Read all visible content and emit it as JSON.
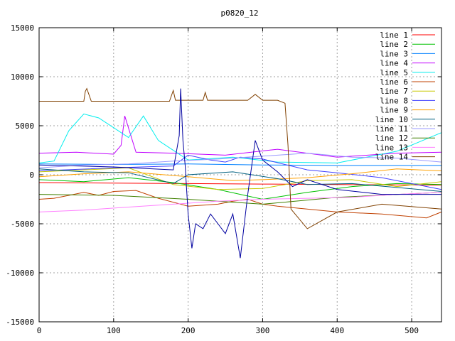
{
  "chart_data": {
    "type": "line",
    "title": "p0820_12",
    "xlabel": "",
    "ylabel": "",
    "xlim": [
      0,
      540
    ],
    "ylim": [
      -15000,
      15000
    ],
    "grid": true,
    "legend_position": "top-right",
    "x_ticks": [
      0,
      100,
      200,
      300,
      400,
      500
    ],
    "x_tick_labels": [
      "0",
      "100",
      "200",
      "300",
      "400",
      "500"
    ],
    "y_ticks": [
      -15000,
      -10000,
      -5000,
      0,
      5000,
      10000,
      15000
    ],
    "y_tick_labels": [
      "-15000",
      "-10000",
      "-5000",
      "0",
      "5000",
      "10000",
      "15000"
    ],
    "series": [
      {
        "name": "line 1",
        "color": "#ff0000",
        "x": [
          0,
          100,
          200,
          300,
          400,
          540
        ],
        "y": [
          -800,
          -850,
          -900,
          -950,
          -1000,
          -1050
        ]
      },
      {
        "name": "line 2",
        "color": "#00c000",
        "x": [
          0,
          60,
          120,
          180,
          240,
          300,
          360,
          420,
          480,
          540
        ],
        "y": [
          -500,
          -700,
          -300,
          -800,
          -1500,
          -2500,
          -1800,
          -1200,
          -900,
          -1000
        ]
      },
      {
        "name": "line 3",
        "color": "#0080ff",
        "x": [
          0,
          100,
          200,
          300,
          400,
          540
        ],
        "y": [
          1100,
          1050,
          1100,
          1000,
          950,
          950
        ]
      },
      {
        "name": "line 4",
        "color": "#c000ff",
        "x": [
          0,
          50,
          100,
          110,
          115,
          130,
          180,
          250,
          320,
          400,
          480,
          540
        ],
        "y": [
          2200,
          2300,
          2100,
          3000,
          6000,
          2300,
          2200,
          2000,
          2600,
          1800,
          2200,
          2300
        ]
      },
      {
        "name": "line 5",
        "color": "#00eeee",
        "x": [
          0,
          20,
          40,
          60,
          80,
          120,
          140,
          160,
          200,
          260,
          320,
          400,
          480,
          540
        ],
        "y": [
          1200,
          1400,
          4500,
          6200,
          5800,
          3800,
          6000,
          3500,
          1500,
          1800,
          1300,
          1200,
          2400,
          4300
        ]
      },
      {
        "name": "line 6",
        "color": "#c04000",
        "x": [
          0,
          20,
          40,
          60,
          80,
          100,
          130,
          160,
          200,
          240,
          260,
          280,
          300,
          320,
          400,
          460,
          520,
          540
        ],
        "y": [
          -2500,
          -2400,
          -2100,
          -1800,
          -2100,
          -1700,
          -1600,
          -2400,
          -3200,
          -3000,
          -2700,
          -2500,
          -3000,
          -3200,
          -3800,
          -4000,
          -4400,
          -3800
        ]
      },
      {
        "name": "line 7",
        "color": "#c8c800",
        "x": [
          0,
          60,
          120,
          180,
          240,
          300,
          360,
          420,
          480,
          540
        ],
        "y": [
          300,
          500,
          700,
          -1000,
          -1500,
          -1400,
          -600,
          -500,
          -1200,
          -700
        ]
      },
      {
        "name": "line 8",
        "color": "#4040ff",
        "x": [
          0,
          100,
          180,
          200,
          230,
          250,
          270,
          300,
          360,
          400,
          460,
          540
        ],
        "y": [
          400,
          700,
          900,
          2000,
          1500,
          1300,
          1800,
          1600,
          500,
          200,
          -300,
          -1500
        ]
      },
      {
        "name": "line 9",
        "color": "#ffa000",
        "x": [
          0,
          60,
          120,
          200,
          260,
          300,
          360,
          420,
          480,
          540
        ],
        "y": [
          -200,
          100,
          300,
          -200,
          -600,
          -500,
          -300,
          100,
          600,
          400
        ]
      },
      {
        "name": "line 10",
        "color": "#006080",
        "x": [
          0,
          60,
          120,
          180,
          200,
          260,
          320,
          360,
          420,
          480,
          540
        ],
        "y": [
          600,
          300,
          200,
          -900,
          0,
          300,
          -400,
          -1000,
          -900,
          -1300,
          -1700
        ]
      },
      {
        "name": "line 11",
        "color": "#9999ff",
        "x": [
          0,
          60,
          120,
          180,
          240,
          300,
          360,
          420,
          480,
          540
        ],
        "y": [
          700,
          1000,
          1100,
          1400,
          1600,
          1900,
          2200,
          1800,
          1700,
          1300
        ]
      },
      {
        "name": "line 12",
        "color": "#408000",
        "x": [
          0,
          100,
          200,
          300,
          400,
          540
        ],
        "y": [
          -2000,
          -2100,
          -2500,
          -3000,
          -2300,
          -1800
        ]
      },
      {
        "name": "line 13",
        "color": "#ff80ff",
        "x": [
          0,
          60,
          120,
          180,
          240,
          300,
          360,
          420,
          480,
          540
        ],
        "y": [
          -3800,
          -3600,
          -3300,
          -3000,
          -2700,
          -2500,
          -2400,
          -2300,
          -2000,
          -1800
        ]
      },
      {
        "name": "line 14",
        "color": "#804000",
        "x": [
          0,
          60,
          62,
          64,
          70,
          175,
          180,
          183,
          190,
          220,
          223,
          226,
          250,
          280,
          290,
          300,
          320,
          330,
          334,
          338,
          360,
          400,
          460,
          540
        ],
        "y": [
          7500,
          7500,
          8500,
          8800,
          7500,
          7500,
          8600,
          7600,
          7600,
          7600,
          8400,
          7600,
          7600,
          7600,
          8200,
          7600,
          7600,
          7300,
          3000,
          -3500,
          -5500,
          -3800,
          -3000,
          -3500
        ]
      },
      {
        "name": "",
        "color": "#0000a0",
        "x": [
          0,
          100,
          180,
          188,
          190,
          193,
          196,
          200,
          205,
          210,
          220,
          230,
          240,
          250,
          260,
          270,
          280,
          290,
          300,
          320,
          340,
          360,
          400,
          460,
          540
        ],
        "y": [
          1000,
          800,
          500,
          4000,
          8800,
          3500,
          1000,
          -4000,
          -7500,
          -5000,
          -5500,
          -4000,
          -5000,
          -6000,
          -4000,
          -8500,
          -2000,
          3500,
          1500,
          300,
          -1200,
          -500,
          -1500,
          -2000,
          -2000
        ]
      }
    ]
  }
}
